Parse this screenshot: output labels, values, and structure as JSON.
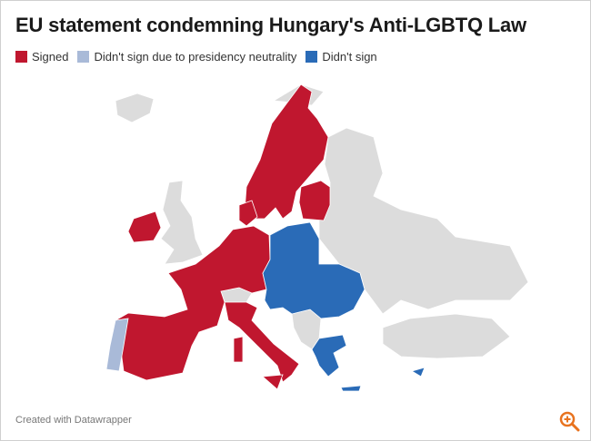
{
  "header": {
    "title": "EU statement condemning Hungary's Anti-LGBTQ Law"
  },
  "legend": [
    {
      "label": "Signed",
      "color": "#c0172f"
    },
    {
      "label": "Didn't sign due to presidency neutrality",
      "color": "#a9bad8"
    },
    {
      "label": "Didn't sign",
      "color": "#2a6bb7"
    }
  ],
  "footer": {
    "credit": "Created with Datawrapper"
  }
}
